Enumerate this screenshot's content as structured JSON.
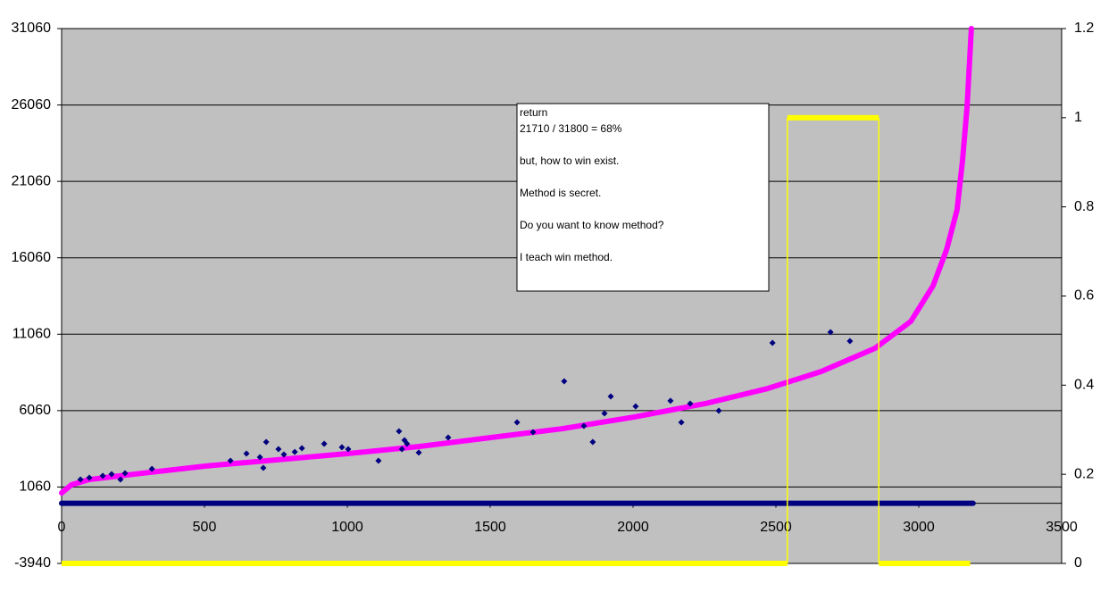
{
  "chart_data": {
    "type": "scatter",
    "xlim": [
      0,
      3500
    ],
    "xticks": [
      0,
      500,
      1000,
      1500,
      2000,
      2500,
      3000,
      3500
    ],
    "ylim": [
      -3940,
      31060
    ],
    "yticks": [
      -3940,
      1060,
      6060,
      11060,
      16060,
      21060,
      26060,
      31060
    ],
    "y2lim": [
      0,
      1.2
    ],
    "y2ticks": [
      0,
      0.2,
      0.4,
      0.6,
      0.8,
      1,
      1.2
    ],
    "grid": true,
    "background": "#c0c0c0",
    "series": [
      {
        "kind": "line",
        "color": "#000080",
        "x": [
          0,
          3190
        ],
        "values": [
          0,
          0
        ]
      },
      {
        "kind": "line",
        "color": "#ff00ff",
        "x": [
          0,
          34,
          97,
          253,
          503,
          753,
          1003,
          1253,
          1503,
          1753,
          2003,
          2253,
          2472,
          2659,
          2847,
          2972,
          3050,
          3097,
          3134,
          3153,
          3169,
          3184
        ],
        "values": [
          675,
          1200,
          1550,
          1900,
          2430,
          2840,
          3250,
          3715,
          4300,
          4880,
          5640,
          6520,
          7510,
          8620,
          10140,
          11900,
          14230,
          16570,
          19200,
          22410,
          25920,
          31060
        ]
      },
      {
        "kind": "scatter",
        "color": "#000080",
        "x": [
          66,
          97,
          144,
          175,
          206,
          222,
          316,
          591,
          647,
          694,
          706,
          716,
          759,
          778,
          816,
          841,
          919,
          981,
          1003,
          1109,
          1181,
          1191,
          1200,
          1209,
          1250,
          1353,
          1594,
          1650,
          1759,
          1828,
          1859,
          1900,
          1922,
          2009,
          2131,
          2169,
          2200,
          2300,
          2488,
          2691,
          2759
        ],
        "values": [
          1550,
          1670,
          1790,
          1900,
          1550,
          1960,
          2250,
          2780,
          3250,
          3010,
          2310,
          4010,
          3540,
          3190,
          3360,
          3600,
          3890,
          3660,
          3540,
          2780,
          4710,
          3540,
          4120,
          3890,
          3310,
          4300,
          5290,
          4650,
          7980,
          5060,
          4010,
          5880,
          6990,
          6340,
          6700,
          5290,
          6520,
          6050,
          10490,
          11190,
          10610
        ]
      },
      {
        "kind": "step",
        "axis": "y2",
        "color": "#ffff00",
        "x": [
          0,
          2540,
          2540,
          2860,
          2860,
          3180
        ],
        "values": [
          0,
          0,
          1,
          1,
          0,
          0
        ]
      }
    ],
    "annotation": [
      [
        "return",
        "21710 / 31800 = 68%"
      ],
      [
        "but, how to win exist."
      ],
      [
        "Method is secret."
      ],
      [
        "Do you want to know method?"
      ],
      [
        "I teach win method."
      ]
    ]
  }
}
